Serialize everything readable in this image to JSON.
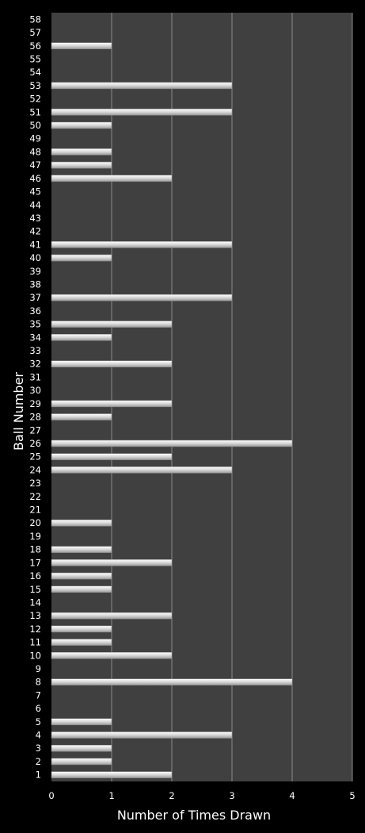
{
  "chart_data": {
    "type": "bar",
    "orientation": "horizontal",
    "title": "",
    "xlabel": "Number of Times Drawn",
    "ylabel": "Ball Number",
    "xlim": [
      0,
      5
    ],
    "x_ticks": [
      "0",
      "1",
      "2",
      "3",
      "4",
      "5"
    ],
    "grid": true,
    "colors": {
      "background": "#000000",
      "plot_area": "#404040",
      "gridline": "#8a8a8a",
      "bar": "#e8e8e8",
      "text": "#ffffff"
    },
    "categories": [
      "1",
      "2",
      "3",
      "4",
      "5",
      "6",
      "7",
      "8",
      "9",
      "10",
      "11",
      "12",
      "13",
      "14",
      "15",
      "16",
      "17",
      "18",
      "19",
      "20",
      "21",
      "22",
      "23",
      "24",
      "25",
      "26",
      "27",
      "28",
      "29",
      "30",
      "31",
      "32",
      "33",
      "34",
      "35",
      "36",
      "37",
      "38",
      "39",
      "40",
      "41",
      "42",
      "43",
      "44",
      "45",
      "46",
      "47",
      "48",
      "49",
      "50",
      "51",
      "52",
      "53",
      "54",
      "55",
      "56",
      "57",
      "58"
    ],
    "values": [
      2,
      1,
      1,
      3,
      1,
      0,
      0,
      4,
      0,
      2,
      1,
      1,
      2,
      0,
      1,
      1,
      2,
      1,
      0,
      1,
      0,
      0,
      0,
      3,
      2,
      4,
      0,
      1,
      2,
      0,
      0,
      2,
      0,
      1,
      2,
      0,
      3,
      0,
      0,
      1,
      3,
      0,
      0,
      0,
      0,
      2,
      1,
      1,
      0,
      1,
      3,
      0,
      3,
      0,
      0,
      1,
      0,
      0
    ]
  }
}
